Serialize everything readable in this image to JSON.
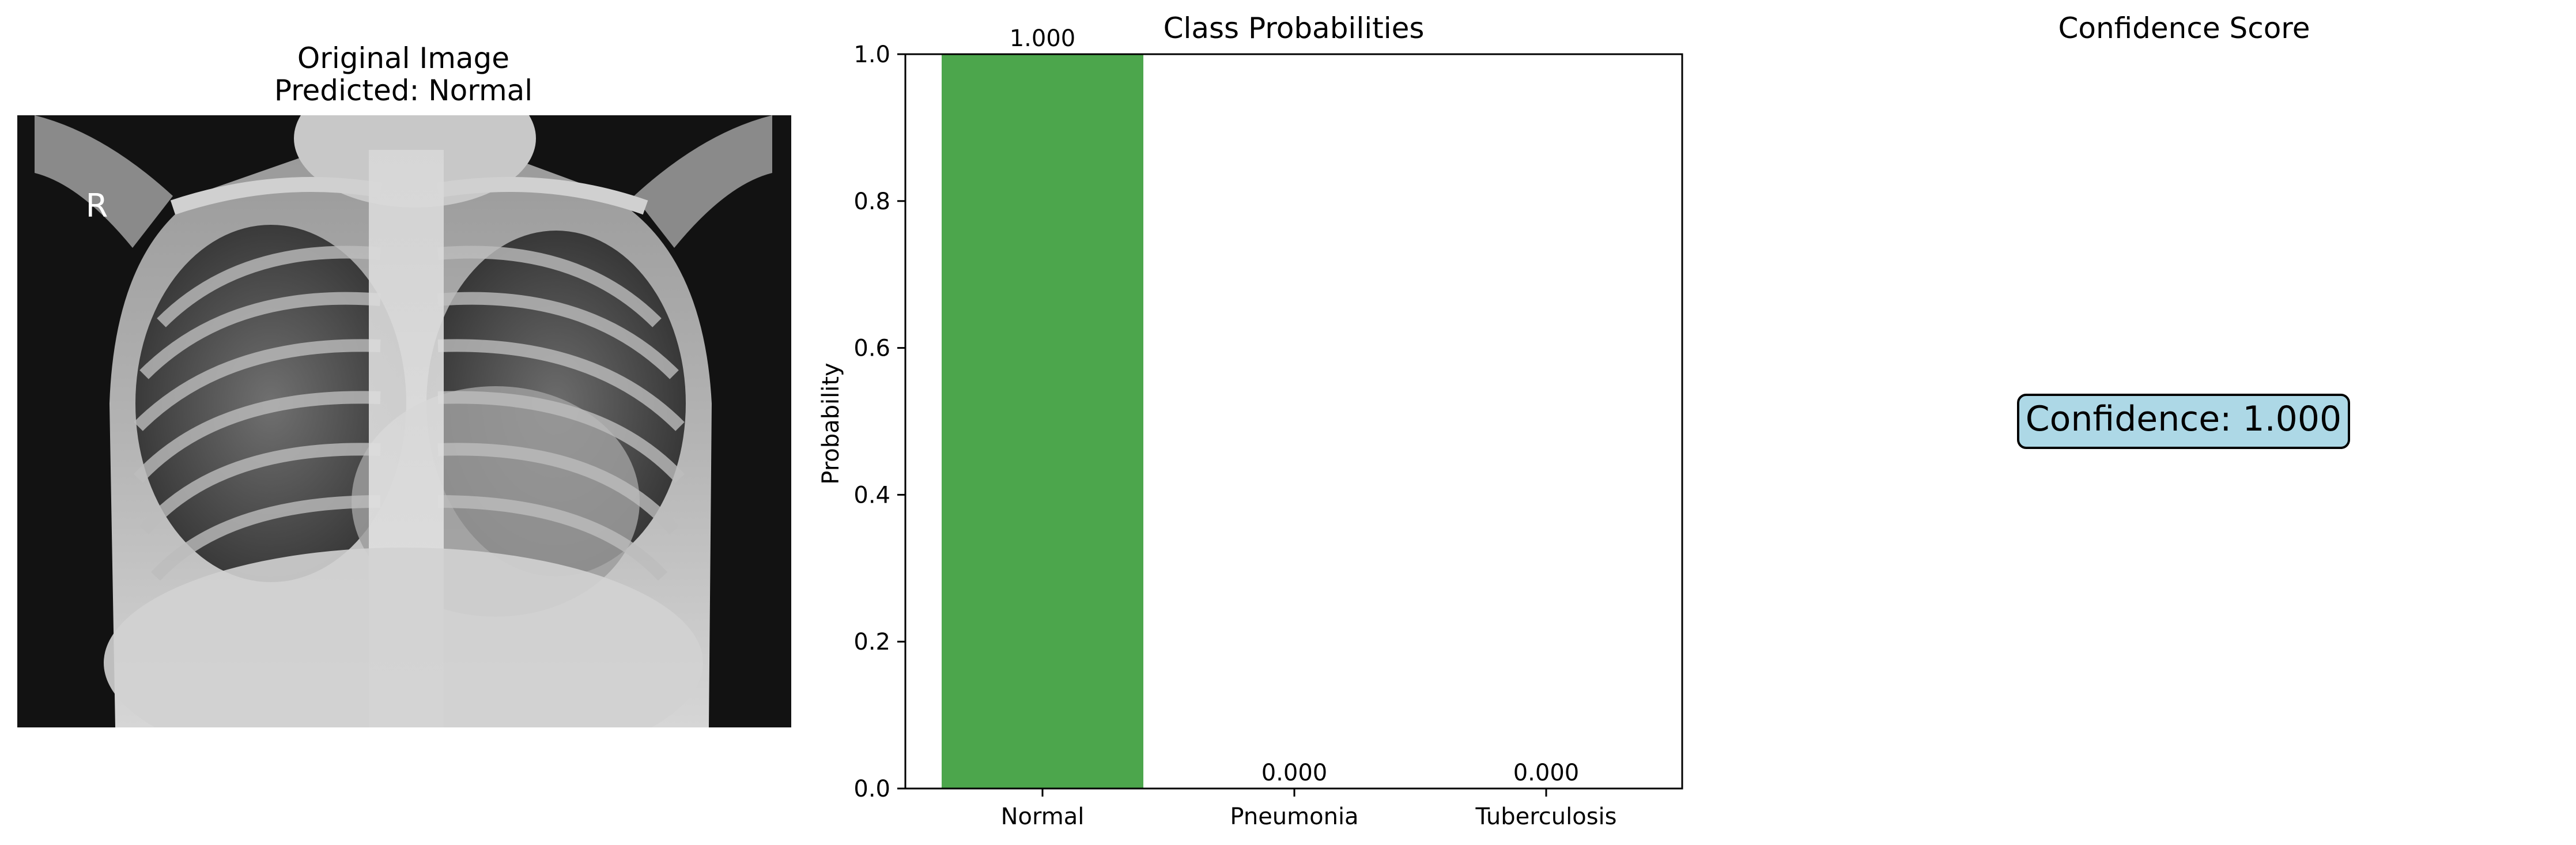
{
  "panels": {
    "image": {
      "title_line1": "Original Image",
      "title_line2": "Predicted: Normal",
      "marker_text": "R"
    },
    "confidence": {
      "title": "Confidence Score",
      "text": "Confidence: 1.000",
      "box_fill": "#add8e6"
    }
  },
  "chart_data": {
    "type": "bar",
    "title": "Class Probabilities",
    "ylabel": "Probability",
    "xlabel": "",
    "categories": [
      "Normal",
      "Pneumonia",
      "Tuberculosis"
    ],
    "values": [
      1.0,
      0.0,
      0.0
    ],
    "value_labels": [
      "1.000",
      "0.000",
      "0.000"
    ],
    "ylim": [
      0,
      1.0
    ],
    "yticks": [
      0.0,
      0.2,
      0.4,
      0.6,
      0.8,
      1.0
    ],
    "ytick_labels": [
      "0.0",
      "0.2",
      "0.4",
      "0.6",
      "0.8",
      "1.0"
    ],
    "grid": false,
    "bar_color": "#4ca64c"
  }
}
